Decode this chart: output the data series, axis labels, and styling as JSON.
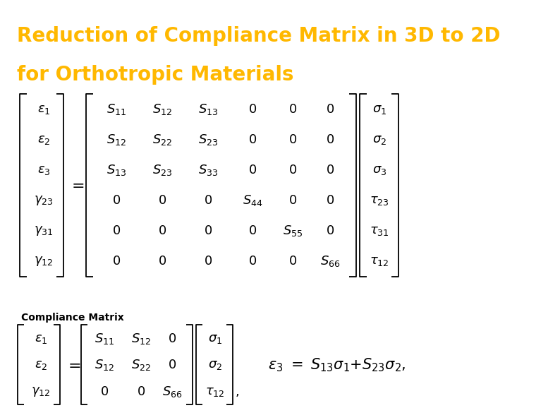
{
  "title_line1": "Reduction of Compliance Matrix in 3D to 2D",
  "title_line2": "for Orthotropic Materials",
  "title_color": "#FFB800",
  "title_bg_color": "#000000",
  "body_bg_color": "#FFFFFF",
  "title_fontsize": 20,
  "small_label": "Compliance Matrix"
}
